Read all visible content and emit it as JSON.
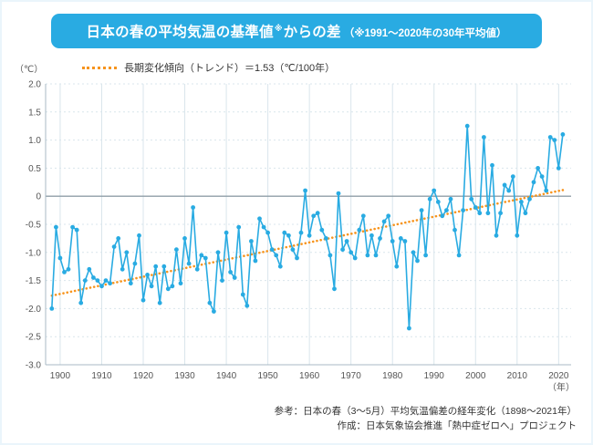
{
  "banner": {
    "title_main": "日本の春の平均気温の基準値",
    "title_sup": "※",
    "title_tail": "からの差",
    "title_note": "（※1991〜2020年の30年平均値）"
  },
  "legend": {
    "label": "長期変化傾向（トレンド）＝1.53（℃/100年）"
  },
  "axis": {
    "y_unit": "（℃）",
    "x_unit": "（年）"
  },
  "footer": {
    "line1": "参考：日本の春（3〜5月）平均気温偏差の経年変化（1898〜2021年）",
    "line2": "作成：日本気象協会推進「熱中症ゼロへ」プロジェクト"
  },
  "chart_data": {
    "type": "line",
    "title": "日本の春の平均気温の基準値からの差（1991〜2020年の30年平均値基準）",
    "xlabel": "年",
    "ylabel": "℃",
    "ylim": [
      -3.0,
      2.0
    ],
    "xlim": [
      1896.5,
      2023
    ],
    "grid": true,
    "legend_position": "top-left",
    "years": [
      1898,
      1899,
      1900,
      1901,
      1902,
      1903,
      1904,
      1905,
      1906,
      1907,
      1908,
      1909,
      1910,
      1911,
      1912,
      1913,
      1914,
      1915,
      1916,
      1917,
      1918,
      1919,
      1920,
      1921,
      1922,
      1923,
      1924,
      1925,
      1926,
      1927,
      1928,
      1929,
      1930,
      1931,
      1932,
      1933,
      1934,
      1935,
      1936,
      1937,
      1938,
      1939,
      1940,
      1941,
      1942,
      1943,
      1944,
      1945,
      1946,
      1947,
      1948,
      1949,
      1950,
      1951,
      1952,
      1953,
      1954,
      1955,
      1956,
      1957,
      1958,
      1959,
      1960,
      1961,
      1962,
      1963,
      1964,
      1965,
      1966,
      1967,
      1968,
      1969,
      1970,
      1971,
      1972,
      1973,
      1974,
      1975,
      1976,
      1977,
      1978,
      1979,
      1980,
      1981,
      1982,
      1983,
      1984,
      1985,
      1986,
      1987,
      1988,
      1989,
      1990,
      1991,
      1992,
      1993,
      1994,
      1995,
      1996,
      1997,
      1998,
      1999,
      2000,
      2001,
      2002,
      2003,
      2004,
      2005,
      2006,
      2007,
      2008,
      2009,
      2010,
      2011,
      2012,
      2013,
      2014,
      2015,
      2016,
      2017,
      2018,
      2019,
      2020,
      2021
    ],
    "values": [
      -2.0,
      -0.55,
      -1.1,
      -1.35,
      -1.3,
      -0.55,
      -0.6,
      -1.9,
      -1.5,
      -1.3,
      -1.45,
      -1.5,
      -1.6,
      -1.5,
      -1.55,
      -0.9,
      -0.75,
      -1.3,
      -1.0,
      -1.55,
      -1.2,
      -0.7,
      -1.85,
      -1.4,
      -1.6,
      -1.25,
      -1.9,
      -1.25,
      -1.65,
      -1.6,
      -0.95,
      -1.55,
      -0.75,
      -1.2,
      -0.2,
      -1.3,
      -1.05,
      -1.1,
      -1.9,
      -2.05,
      -1.0,
      -1.5,
      -0.65,
      -1.35,
      -1.45,
      -0.55,
      -1.75,
      -1.95,
      -0.8,
      -1.15,
      -0.4,
      -0.55,
      -0.65,
      -0.95,
      -1.05,
      -1.25,
      -0.65,
      -0.7,
      -0.95,
      -1.1,
      -0.65,
      0.1,
      -0.7,
      -0.35,
      -0.3,
      -0.6,
      -0.75,
      -1.05,
      -1.65,
      0.05,
      -0.95,
      -0.8,
      -1.0,
      -1.1,
      -0.6,
      -0.35,
      -1.05,
      -0.7,
      -1.05,
      -0.75,
      -0.45,
      -0.35,
      -0.8,
      -1.25,
      -0.75,
      -0.8,
      -2.35,
      -1.0,
      -1.15,
      -0.25,
      -1.05,
      -0.05,
      0.1,
      -0.1,
      -0.35,
      -0.25,
      -0.05,
      -0.6,
      -1.05,
      -0.25,
      1.25,
      -0.05,
      -0.2,
      -0.3,
      1.05,
      -0.3,
      0.55,
      -0.7,
      -0.3,
      0.2,
      0.1,
      0.35,
      -0.7,
      -0.1,
      -0.3,
      -0.05,
      0.25,
      0.5,
      0.35,
      0.1,
      1.05,
      1.0,
      0.5,
      1.1
    ],
    "trend": {
      "label": "長期変化傾向（トレンド）",
      "rate_per_100yr": 1.53,
      "start": {
        "year": 1898,
        "value": -1.77
      },
      "end": {
        "year": 2021,
        "value": 0.11
      }
    },
    "yticks": [
      2.0,
      1.5,
      1.0,
      0.5,
      0,
      -0.5,
      -1.0,
      -1.5,
      -2.0,
      -2.5,
      -3.0
    ],
    "ytick_labels": [
      "2.0",
      "1.5",
      "1.0",
      "0.5",
      "0",
      "-0.5",
      "-1.0",
      "-1.5",
      "-2.0",
      "-2.5",
      "-3.0"
    ],
    "xticks": [
      1900,
      1910,
      1920,
      1930,
      1940,
      1950,
      1960,
      1970,
      1980,
      1990,
      2000,
      2010,
      2020
    ],
    "colors": {
      "line": "#29ABE2",
      "trend": "#F7941D",
      "banner": "#29ABE2",
      "zero_line": "#8f9ea7",
      "grid": "#d9e5ec",
      "axis": "#a8bac4",
      "tick_text": "#555555"
    }
  }
}
